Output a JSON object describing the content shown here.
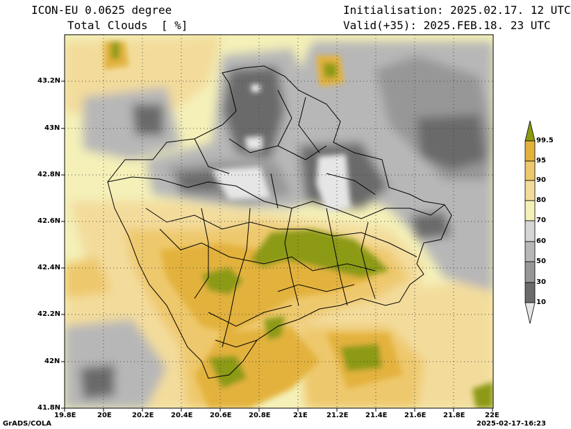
{
  "header": {
    "model": "ICON-EU 0.0625 degree",
    "variable": "Total Clouds  [ %]",
    "init": "Initialisation: 2025.02.17. 12 UTC",
    "valid": "Valid(+35): 2025.FEB.18. 23 UTC"
  },
  "map": {
    "lon_ticks": [
      "19.8E",
      "20E",
      "20.2E",
      "20.4E",
      "20.6E",
      "20.8E",
      "21E",
      "21.2E",
      "21.4E",
      "21.6E",
      "21.8E",
      "22E"
    ],
    "lat_ticks": [
      "43.2N",
      "43N",
      "42.8N",
      "42.6N",
      "42.4N",
      "42.2N",
      "42N",
      "41.8N"
    ],
    "lon_range": [
      19.8,
      22.0
    ],
    "lat_range": [
      41.8,
      43.4
    ]
  },
  "legend": {
    "levels": [
      "99.5",
      "95",
      "90",
      "80",
      "70",
      "60",
      "50",
      "30",
      "10"
    ],
    "colors": {
      "above_99_5": "#8c9a12",
      "95_99_5": "#e3b23c",
      "90_95": "#eec86c",
      "80_90": "#f3dc9b",
      "70_80": "#f4f0b8",
      "60_70": "#d5d5d5",
      "50_60": "#b7b7b7",
      "30_50": "#979797",
      "10_30": "#6b6b6b",
      "below_10": "#e6e6e6"
    }
  },
  "footer": {
    "left": "GrADS/COLA",
    "right": "2025-02-17-16:23"
  }
}
